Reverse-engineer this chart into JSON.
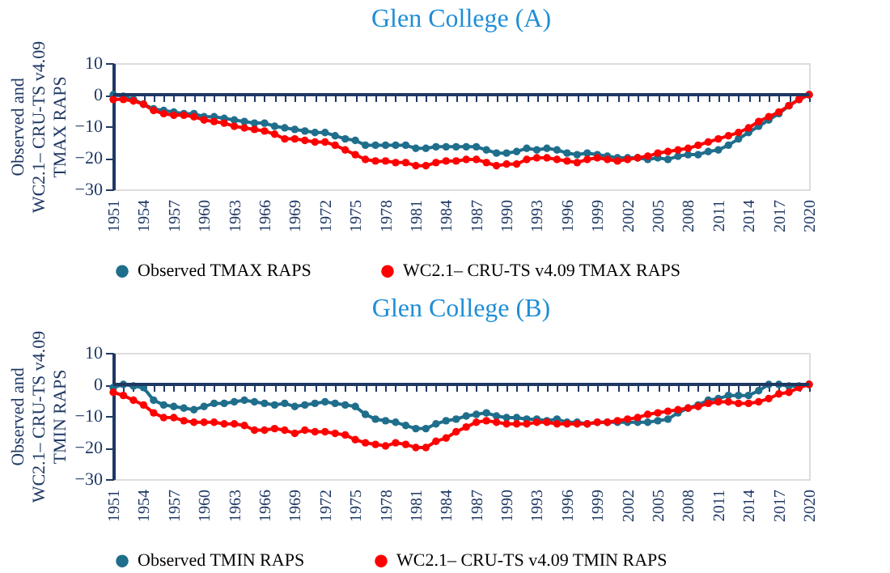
{
  "chart_data": [
    {
      "type": "line",
      "title": "Glen College (A)",
      "ylabel": "Observed and\nWC2.1– CRU-TS  v4.09\nTMAX RAPS",
      "categories": [
        "1951",
        null,
        null,
        "1954",
        null,
        null,
        "1957",
        null,
        null,
        "1960",
        null,
        null,
        "1963",
        null,
        null,
        "1966",
        null,
        null,
        "1969",
        null,
        null,
        "1972",
        null,
        null,
        "1975",
        null,
        null,
        "1978",
        null,
        null,
        "1981",
        null,
        null,
        "1984",
        null,
        null,
        "1987",
        null,
        null,
        "1990",
        null,
        null,
        "1993",
        null,
        null,
        "1996",
        null,
        null,
        "1999",
        null,
        null,
        "2002",
        null,
        null,
        "2005",
        null,
        null,
        "2008",
        null,
        null,
        "2011",
        null,
        null,
        "2014",
        null,
        null,
        "2017",
        null,
        null,
        "2020"
      ],
      "series": [
        {
          "name": "Observed TMAX RAPS",
          "color": "#1f6e8c",
          "values": [
            0,
            -0.5,
            -1.5,
            -3,
            -4.5,
            -5,
            -5.5,
            -6,
            -6,
            -7,
            -7,
            -7.5,
            -8,
            -8.5,
            -9,
            -9,
            -10,
            -10.5,
            -11,
            -11.5,
            -12,
            -12,
            -13,
            -14,
            -14.5,
            -16,
            -16,
            -16,
            -16,
            -16,
            -17,
            -17,
            -16.5,
            -16.5,
            -16.5,
            -16.5,
            -16.5,
            -17.5,
            -18.5,
            -18.5,
            -18,
            -17,
            -17.5,
            -17,
            -17.5,
            -18.5,
            -19,
            -18.5,
            -19,
            -19.5,
            -20,
            -20,
            -20,
            -20.5,
            -20,
            -20.5,
            -19.5,
            -19,
            -19,
            -18,
            -17.5,
            -16,
            -14,
            -12,
            -10,
            -8,
            -6,
            -3.5,
            -1.5,
            0
          ]
        },
        {
          "name": "WC2.1–  CRU-TS  v4.09 TMAX RAPS",
          "color": "#ff0000",
          "values": [
            -1.5,
            -1.5,
            -2,
            -3,
            -5,
            -6,
            -6.5,
            -6.5,
            -7,
            -8,
            -8.5,
            -9,
            -10,
            -10.5,
            -11,
            -11.5,
            -12.5,
            -14,
            -14,
            -14.5,
            -15,
            -15,
            -16,
            -17.5,
            -19,
            -20.5,
            -21,
            -21,
            -21.5,
            -21.5,
            -22.5,
            -22.5,
            -21.5,
            -21,
            -21,
            -20.5,
            -20.5,
            -21.5,
            -22.5,
            -22,
            -22,
            -20.5,
            -20,
            -20,
            -20.5,
            -21,
            -21.5,
            -20.5,
            -20,
            -20.5,
            -21,
            -20.5,
            -20,
            -19.5,
            -18.5,
            -18,
            -17.5,
            -17,
            -16,
            -15,
            -14,
            -13,
            -12,
            -10.5,
            -8.5,
            -7,
            -5.5,
            -3.5,
            -1.5,
            0
          ]
        }
      ],
      "ylim": [
        -30,
        10
      ],
      "yticks": [
        -30,
        -20,
        -10,
        0,
        10
      ],
      "ref_lines": [
        {
          "axis": "y",
          "value": 0,
          "color": "#1f3864"
        }
      ],
      "grid": false,
      "legend": "bottom",
      "marker": "circle"
    },
    {
      "type": "line",
      "title": "Glen College (B)",
      "ylabel": "Observed and\nWC2.1– CRU-TS  v4.09\nTMIN RAPS",
      "categories": [
        "1951",
        null,
        null,
        "1954",
        null,
        null,
        "1957",
        null,
        null,
        "1960",
        null,
        null,
        "1963",
        null,
        null,
        "1966",
        null,
        null,
        "1969",
        null,
        null,
        "1972",
        null,
        null,
        "1975",
        null,
        null,
        "1978",
        null,
        null,
        "1981",
        null,
        null,
        "1984",
        null,
        null,
        "1987",
        null,
        null,
        "1990",
        null,
        null,
        "1993",
        null,
        null,
        "1996",
        null,
        null,
        "1999",
        null,
        null,
        "2002",
        null,
        null,
        "2005",
        null,
        null,
        "2008",
        null,
        null,
        "2011",
        null,
        null,
        "2014",
        null,
        null,
        "2017",
        null,
        null,
        "2020"
      ],
      "series": [
        {
          "name": "Observed TMIN RAPS",
          "color": "#1f6e8c",
          "values": [
            -1,
            0,
            -0.5,
            -1,
            -5,
            -6.5,
            -7,
            -7.5,
            -8,
            -7,
            -6,
            -6,
            -5.5,
            -5,
            -5.5,
            -6,
            -6.5,
            -6,
            -7,
            -6.5,
            -6,
            -5.5,
            -6,
            -6.5,
            -7,
            -9.5,
            -11,
            -11.5,
            -12,
            -13,
            -14,
            -14,
            -12.5,
            -11.5,
            -11,
            -10,
            -9.5,
            -9,
            -10,
            -10.5,
            -10.5,
            -11,
            -11,
            -11.5,
            -11,
            -12,
            -12,
            -12.5,
            -12,
            -12,
            -12,
            -12,
            -12,
            -12,
            -11.5,
            -11,
            -9,
            -7.5,
            -6.5,
            -5,
            -4.5,
            -3.5,
            -3.5,
            -3.5,
            -2,
            0,
            0,
            -0.5,
            -0.5,
            0
          ]
        },
        {
          "name": "WC2.1–  CRU-TS  v4.09 TMIN RAPS",
          "color": "#ff0000",
          "values": [
            -2.5,
            -3.5,
            -5,
            -6.5,
            -9,
            -10.5,
            -10.5,
            -11.5,
            -12,
            -12,
            -12,
            -12.5,
            -12.5,
            -13,
            -14.5,
            -14.5,
            -14,
            -14.5,
            -15.5,
            -14.5,
            -15,
            -15,
            -15.5,
            -16,
            -17.5,
            -18.5,
            -19,
            -19.5,
            -18.5,
            -19,
            -20,
            -20,
            -18,
            -17,
            -15,
            -13.5,
            -12,
            -11.5,
            -12,
            -12.5,
            -12.5,
            -12.5,
            -12,
            -12,
            -12.5,
            -12.5,
            -12.5,
            -12.5,
            -12,
            -12,
            -11.5,
            -11,
            -10.5,
            -9.5,
            -9,
            -8.5,
            -8,
            -7.5,
            -7,
            -6,
            -5.5,
            -5.5,
            -6,
            -6,
            -5.5,
            -4.5,
            -3,
            -2.5,
            -1,
            0
          ]
        }
      ],
      "ylim": [
        -30,
        10
      ],
      "yticks": [
        -30,
        -20,
        -10,
        0,
        10
      ],
      "ref_lines": [
        {
          "axis": "y",
          "value": 0,
          "color": "#1f3864"
        }
      ],
      "grid": false,
      "legend": "bottom",
      "marker": "circle"
    }
  ]
}
